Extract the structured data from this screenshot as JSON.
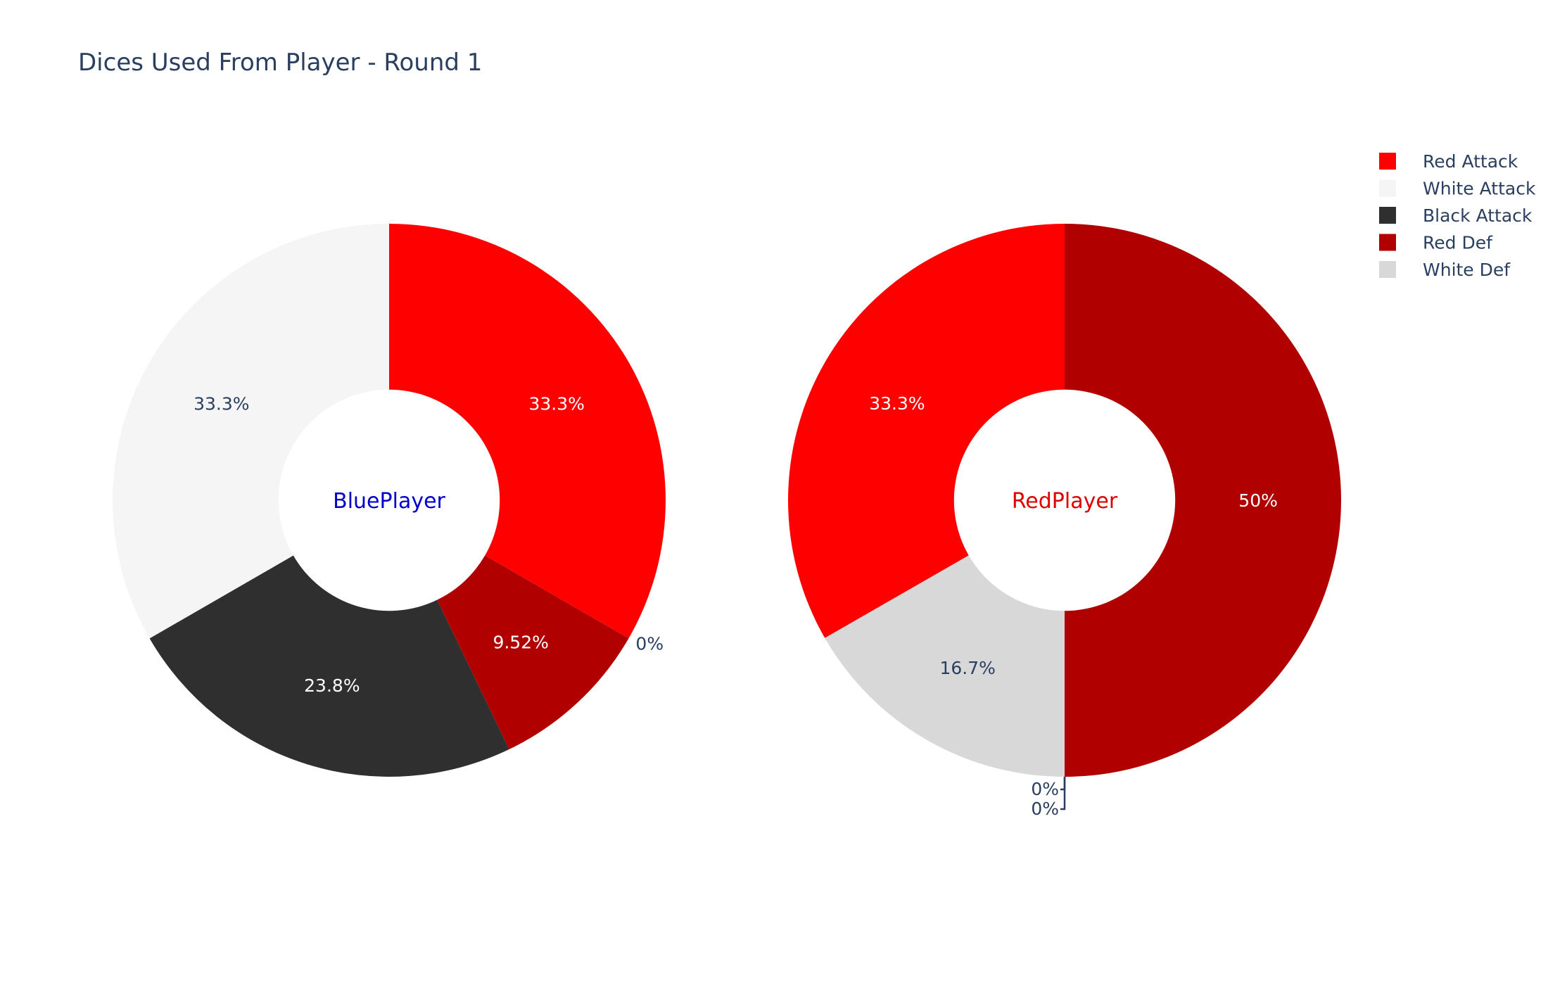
{
  "chart_data": {
    "type": "pie",
    "title": "Dices Used From Player - Round 1",
    "hole": 0.4,
    "categories": [
      "Red Attack",
      "White Attack",
      "Black Attack",
      "Red Def",
      "White Def"
    ],
    "colors": [
      "#ff0000",
      "#f5f5f5",
      "#2f2f2f",
      "#b00000",
      "#d8d8d8"
    ],
    "legend": {
      "position": "top-right",
      "entries": [
        "Red Attack",
        "White Attack",
        "Black Attack",
        "Red Def",
        "White Def"
      ]
    },
    "pies": [
      {
        "name": "BluePlayer",
        "center_label_color": "#0000cc",
        "slices": [
          {
            "label": "Red Attack",
            "value": 33.3,
            "text": "33.3%"
          },
          {
            "label": "White Def",
            "value": 0,
            "text": "0%"
          },
          {
            "label": "Red Def",
            "value": 9.52,
            "text": "9.52%"
          },
          {
            "label": "Black Attack",
            "value": 23.8,
            "text": "23.8%"
          },
          {
            "label": "White Attack",
            "value": 33.3,
            "text": "33.3%"
          }
        ]
      },
      {
        "name": "RedPlayer",
        "center_label_color": "#dd0000",
        "slices": [
          {
            "label": "Red Def",
            "value": 50,
            "text": "50%"
          },
          {
            "label": "White Attack",
            "value": 0,
            "text": "0%"
          },
          {
            "label": "Black Attack",
            "value": 0,
            "text": "0%"
          },
          {
            "label": "White Def",
            "value": 16.7,
            "text": "16.7%"
          },
          {
            "label": "Red Attack",
            "value": 33.3,
            "text": "33.3%"
          }
        ]
      }
    ]
  }
}
